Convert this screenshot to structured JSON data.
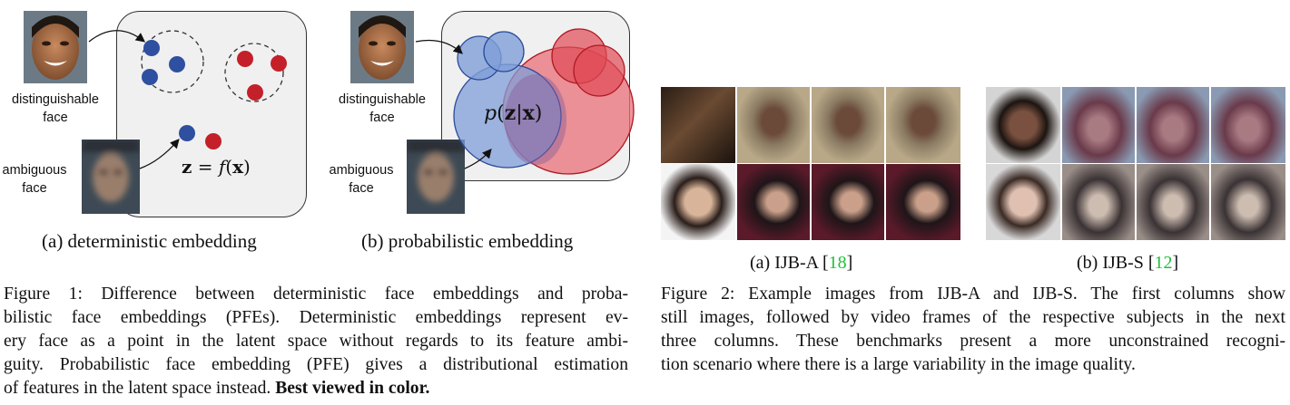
{
  "figure1": {
    "panel_a": {
      "label_distinguishable": "distinguishable\nface",
      "label_ambiguous": "ambiguous\nface",
      "formula_lhs": "z",
      "formula_eq": " = ",
      "formula_f": "f",
      "formula_arg": "(x)",
      "subcaption": "(a) deterministic embedding"
    },
    "panel_b": {
      "label_distinguishable": "distinguishable\nface",
      "label_ambiguous": "ambiguous\nface",
      "formula_p": "p",
      "formula_arg": "(z|x)",
      "subcaption": "(b) probabilistic embedding"
    },
    "caption_lines": [
      "Figure 1: Difference between deterministic face embeddings and proba-",
      "bilistic face embeddings (PFEs). Deterministic embeddings represent ev-",
      "ery face as a point in the latent space without regards to its feature ambi-",
      "guity. Probabilistic face embedding (PFE) gives a distributional estimation"
    ],
    "caption_last_normal": "of features in the latent space instead. ",
    "caption_last_bold": "Best viewed in color.",
    "colors": {
      "blue": "#2f4fa0",
      "red": "#c4202a",
      "blue_fill": "#7f9fd8",
      "red_fill": "#e87078"
    }
  },
  "figure2": {
    "subcaption_a_prefix": "(a) IJB-A [",
    "subcaption_a_ref": "18",
    "subcaption_b_prefix": "(b) IJB-S [",
    "subcaption_b_ref": "12",
    "ref_suffix": "]",
    "caption_lines": [
      "Figure 2: Example images from IJB-A and IJB-S. The first columns show",
      "still images, followed by video frames of the respective subjects in the next",
      "three columns. These benchmarks present a more unconstrained recogni-",
      "tion scenario where there is a large variability in the image quality."
    ],
    "ref_color": "#1fbf3a"
  }
}
